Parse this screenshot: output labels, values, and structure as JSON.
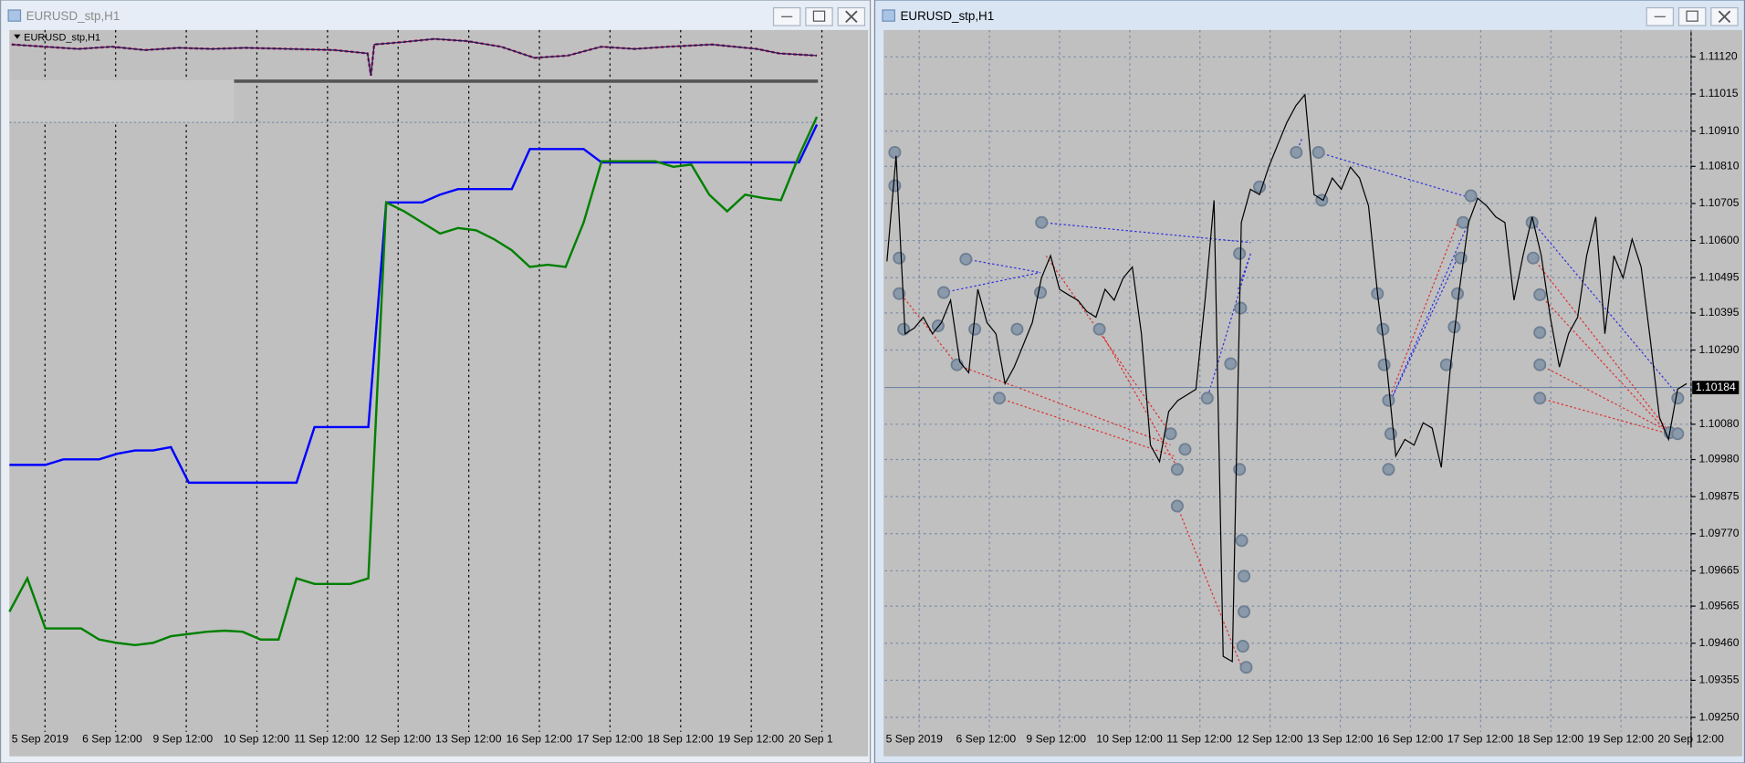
{
  "windows": [
    {
      "title": "EURUSD_stp,H1",
      "mini_chart_label": "EURUSD_stp,H1",
      "chart": {
        "type": "line",
        "x_tick_labels": [
          "5 Sep 2019",
          "6 Sep 12:00",
          "9 Sep 12:00",
          "10 Sep 12:00",
          "11 Sep 12:00",
          "12 Sep 12:00",
          "13 Sep 12:00",
          "16 Sep 12:00",
          "17 Sep 12:00",
          "18 Sep 12:00",
          "19 Sep 12:00",
          "20 Sep 1"
        ],
        "ylim": [
          0,
          600
        ],
        "series": [
          {
            "color": "#0000ff",
            "values": [
              254,
              254,
              254,
              259,
              259,
              259,
              264,
              267,
              267,
              270,
              238,
              238,
              238,
              238,
              238,
              238,
              238,
              288,
              288,
              288,
              288,
              490,
              490,
              490,
              497,
              502,
              502,
              502,
              502,
              538,
              538,
              538,
              538,
              526,
              526,
              526,
              526,
              526,
              526,
              526,
              526,
              526,
              526,
              526,
              526,
              560
            ]
          },
          {
            "color": "#008000",
            "values": [
              122,
              152,
              107,
              107,
              107,
              97,
              94,
              92,
              94,
              100,
              102,
              104,
              105,
              104,
              97,
              97,
              152,
              147,
              147,
              147,
              152,
              490,
              482,
              472,
              462,
              467,
              465,
              457,
              447,
              432,
              434,
              432,
              472,
              527,
              527,
              527,
              527,
              522,
              524,
              497,
              482,
              497,
              494,
              492,
              532,
              567
            ]
          }
        ]
      }
    },
    {
      "title": "EURUSD_stp,H1",
      "chart": {
        "type": "line",
        "x_tick_labels": [
          "5 Sep 2019",
          "6 Sep 12:00",
          "9 Sep 12:00",
          "10 Sep 12:00",
          "11 Sep 12:00",
          "12 Sep 12:00",
          "13 Sep 12:00",
          "16 Sep 12:00",
          "17 Sep 12:00",
          "18 Sep 12:00",
          "19 Sep 12:00",
          "20 Sep 12:00"
        ],
        "ylim": [
          1.09165,
          1.11196
        ],
        "yticks": [
          {
            "value": 1.1112,
            "label": "1.11120"
          },
          1.11015,
          {
            "value": 1.1091,
            "label": "1.10910"
          },
          {
            "value": 1.1081,
            "label": "1.10810"
          },
          1.10705,
          {
            "value": 1.106,
            "label": "1.10600"
          },
          1.10495,
          1.10395,
          {
            "value": 1.1029,
            "label": "1.10290"
          },
          {
            "value": 1.1008,
            "label": "1.10080"
          },
          {
            "value": 1.0998,
            "label": "1.09980"
          },
          1.09875,
          {
            "value": 1.0977,
            "label": "1.09770"
          },
          1.09665,
          1.09565,
          {
            "value": 1.0946,
            "label": "1.09460"
          },
          1.09355,
          {
            "value": 1.0925,
            "label": "1.09250"
          }
        ],
        "price_label": 1.10184,
        "series": [
          {
            "color": "#000000",
            "values": [
              1.10541,
              1.1084,
              1.10336,
              1.10352,
              1.10383,
              1.10336,
              1.10368,
              1.10431,
              1.10257,
              1.10226,
              1.10462,
              1.10368,
              1.10336,
              1.10195,
              1.10242,
              1.10305,
              1.10368,
              1.10494,
              1.10557,
              1.10462,
              1.10446,
              1.10431,
              1.10399,
              1.10383,
              1.10462,
              1.10431,
              1.10494,
              1.10525,
              1.10336,
              1.10021,
              1.09974,
              1.10116,
              1.10147,
              1.10163,
              1.10179,
              1.10431,
              1.10714,
              1.09423,
              1.09408,
              1.10651,
              1.10745,
              1.1073,
              1.10808,
              1.10871,
              1.10934,
              1.10982,
              1.11013,
              1.1073,
              1.10714,
              1.10777,
              1.10745,
              1.10808,
              1.10777,
              1.10698,
              1.10446,
              1.10242,
              1.0999,
              1.10037,
              1.10021,
              1.10084,
              1.10069,
              1.09958,
              1.10242,
              1.10462,
              1.10651,
              1.1072,
              1.10698,
              1.10667,
              1.10651,
              1.10431,
              1.10557,
              1.10667,
              1.10557,
              1.10383,
              1.10242,
              1.10336,
              1.10383,
              1.10557,
              1.10667,
              1.10336,
              1.10557,
              1.10494,
              1.10604,
              1.10525,
              1.1032,
              1.101,
              1.10037,
              1.10179,
              1.10195
            ]
          }
        ]
      }
    }
  ]
}
